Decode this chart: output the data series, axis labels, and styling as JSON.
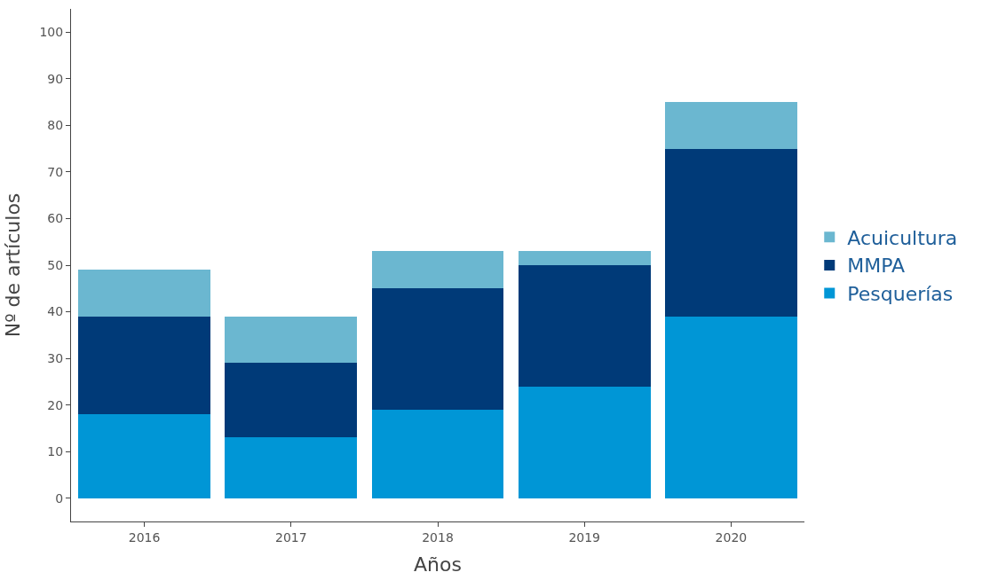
{
  "chart_data": {
    "type": "bar",
    "stacked": true,
    "xlabel": "Años",
    "ylabel": "Nº de artículos",
    "categories": [
      "2016",
      "2017",
      "2018",
      "2019",
      "2020"
    ],
    "series": [
      {
        "name": "Pesquerías",
        "color": "#0096d6",
        "values": [
          18,
          13,
          19,
          24,
          39
        ]
      },
      {
        "name": "MMPA",
        "color": "#003a78",
        "values": [
          21,
          16,
          26,
          26,
          36
        ]
      },
      {
        "name": "Acuicultura",
        "color": "#6bb7d0",
        "values": [
          10,
          10,
          8,
          3,
          10
        ]
      }
    ],
    "ylim": [
      -5,
      105
    ],
    "yticks": [
      0,
      10,
      20,
      30,
      40,
      50,
      60,
      70,
      80,
      90,
      100
    ],
    "legend": "right"
  }
}
